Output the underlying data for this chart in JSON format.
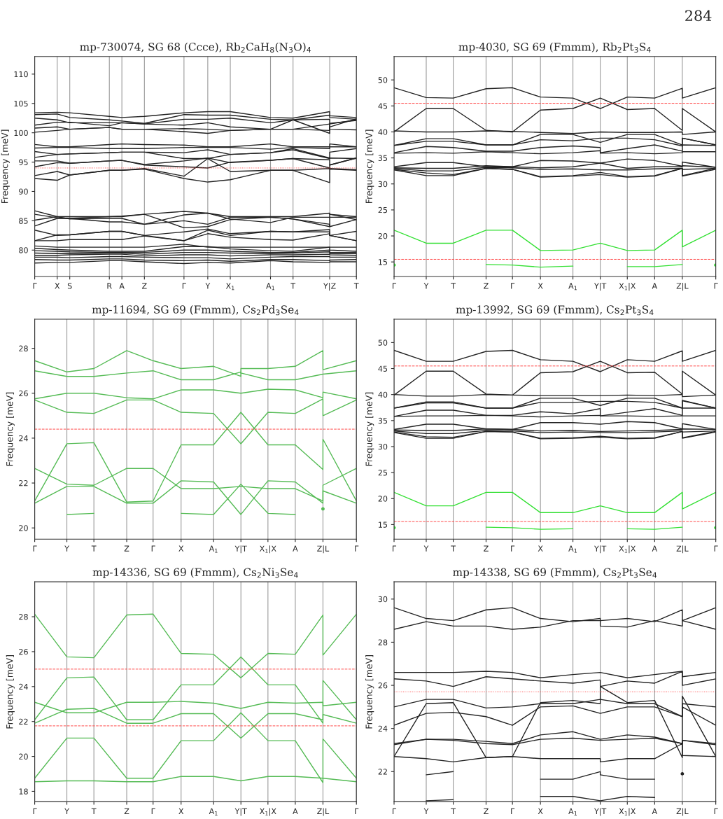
{
  "chart_data": [
    {
      "type": "line",
      "title": "mp-730074, SG 68 (Ccce), Rb$_{2}$CaH$_{8}$(N$_{3}$O)$_{4}$",
      "ylabel": "Frequency [meV]",
      "annotations": [
        "284"
      ],
      "x": [
        0,
        0.07,
        0.109,
        0.232,
        0.271,
        0.341,
        0.464,
        0.538,
        0.608,
        0.733,
        0.803,
        0.917,
        0.917,
        1.0
      ],
      "xlim": [
        0,
        1.0
      ],
      "xticks": [
        {
          "value": 0,
          "label": "Γ"
        },
        {
          "value": 0.07,
          "label": "X"
        },
        {
          "value": 0.109,
          "label": "S"
        },
        {
          "value": 0.232,
          "label": "R"
        },
        {
          "value": 0.271,
          "label": "A"
        },
        {
          "value": 0.341,
          "label": "Z"
        },
        {
          "value": 0.464,
          "label": "Γ"
        },
        {
          "value": 0.538,
          "label": "Y"
        },
        {
          "value": 0.608,
          "label": "X$_{1}$"
        },
        {
          "value": 0.733,
          "label": "A$_{1}$"
        },
        {
          "value": 0.803,
          "label": "T"
        },
        {
          "value": 0.917,
          "label": "Y|Z"
        },
        {
          "value": 1.0,
          "label": "T"
        }
      ],
      "ylim": [
        75.5,
        113
      ],
      "yticks": [
        80,
        85,
        90,
        95,
        100,
        105,
        110
      ],
      "grid": "x",
      "ref_lines": [
        {
          "axis": "y",
          "value": 94.0,
          "color": "#ff4444",
          "line_style": "dotted"
        }
      ],
      "series": [
        {
          "color": "#222222",
          "values": [
            103.4,
            103.5,
            103.4,
            102.8,
            102.6,
            102.8,
            103.4,
            103.6,
            103.6,
            102.6,
            102.5,
            103.6,
            102.9,
            102.6
          ]
        },
        {
          "color": "#222222",
          "values": [
            103.1,
            103.2,
            102.6,
            102.2,
            102.0,
            101.6,
            103.1,
            103.0,
            103.0,
            102.3,
            102.2,
            103.0,
            102.6,
            102.3
          ]
        },
        {
          "color": "#222222",
          "values": [
            102.5,
            102.2,
            101.7,
            101.7,
            101.7,
            101.5,
            102.3,
            102.3,
            102.5,
            101.7,
            102.2,
            102.3,
            101.5,
            102.2
          ]
        },
        {
          "color": "#222222",
          "values": [
            101.3,
            101.8,
            101.8,
            101.2,
            101.7,
            101.5,
            101.3,
            101.7,
            101.0,
            100.6,
            100.6,
            101.5,
            100.6,
            100.5
          ]
        },
        {
          "color": "#222222",
          "values": [
            100.8,
            101.0,
            100.6,
            100.9,
            100.6,
            100.6,
            100.7,
            100.6,
            100.4,
            100.6,
            100.6,
            100.4,
            101.6,
            102.1
          ]
        },
        {
          "color": "#222222",
          "values": [
            100.1,
            100.4,
            100.6,
            100.9,
            100.6,
            100.6,
            100.2,
            99.9,
            100.4,
            100.6,
            102.2,
            99.9,
            101.0,
            102.4
          ]
        },
        {
          "color": "#222222",
          "values": [
            98.0,
            97.6,
            97.6,
            98.0,
            98.1,
            98.0,
            97.9,
            97.6,
            97.6,
            98.1,
            97.6,
            97.6,
            98.1,
            97.6
          ]
        },
        {
          "color": "#222222",
          "values": [
            97.4,
            97.5,
            97.5,
            97.3,
            97.3,
            97.3,
            97.5,
            97.5,
            97.5,
            97.2,
            97.5,
            97.3,
            97.6,
            97.6
          ]
        },
        {
          "color": "#222222",
          "values": [
            96.8,
            96.3,
            96.4,
            96.6,
            96.7,
            96.7,
            96.6,
            97.1,
            96.3,
            96.6,
            97.3,
            95.7,
            96.7,
            97.3
          ]
        },
        {
          "color": "#222222",
          "values": [
            95.8,
            96.3,
            96.4,
            96.6,
            96.7,
            96.7,
            95.6,
            95.6,
            96.3,
            96.6,
            97.1,
            95.6,
            95.7,
            95.6
          ]
        },
        {
          "color": "#222222",
          "values": [
            95.2,
            95.2,
            94.8,
            95.2,
            95.3,
            94.6,
            95.2,
            95.7,
            94.9,
            95.3,
            95.6,
            95.4,
            94.5,
            95.7
          ]
        },
        {
          "color": "#222222",
          "values": [
            94.2,
            94.9,
            94.8,
            95.2,
            95.3,
            94.5,
            94.2,
            94.0,
            95.0,
            95.3,
            95.6,
            94.0,
            94.5,
            95.7
          ]
        },
        {
          "color": "#222222",
          "values": [
            92.7,
            93.4,
            92.8,
            93.6,
            93.6,
            93.9,
            92.6,
            95.6,
            93.4,
            93.6,
            93.6,
            93.9,
            93.9,
            93.7
          ]
        },
        {
          "color": "#222222",
          "values": [
            92.2,
            91.9,
            92.8,
            93.6,
            93.6,
            93.8,
            92.2,
            91.6,
            92.0,
            93.6,
            93.6,
            91.5,
            93.8,
            93.6
          ]
        },
        {
          "color": "#222222",
          "values": [
            86.7,
            85.7,
            85.7,
            85.7,
            85.8,
            86.1,
            86.6,
            86.3,
            85.7,
            85.7,
            85.7,
            86.3,
            86.1,
            85.7
          ]
        },
        {
          "color": "#222222",
          "values": [
            86.1,
            85.5,
            85.4,
            84.8,
            84.8,
            84.4,
            86.0,
            86.3,
            85.3,
            84.7,
            85.6,
            85.6,
            86.1,
            85.2
          ]
        },
        {
          "color": "#222222",
          "values": [
            85.1,
            85.7,
            85.3,
            85.4,
            85.4,
            84.4,
            85.0,
            84.4,
            85.6,
            85.6,
            85.3,
            84.4,
            84.0,
            85.2
          ]
        },
        {
          "color": "#222222",
          "values": [
            84.1,
            85.4,
            85.4,
            85.7,
            85.7,
            86.1,
            83.8,
            84.0,
            85.2,
            85.6,
            85.3,
            84.0,
            85.6,
            85.6
          ]
        },
        {
          "color": "#222222",
          "values": [
            83.4,
            82.5,
            82.6,
            83.2,
            83.2,
            82.5,
            83.1,
            83.6,
            82.8,
            83.2,
            83.1,
            83.5,
            82.5,
            83.2
          ]
        },
        {
          "color": "#222222",
          "values": [
            81.6,
            82.6,
            82.6,
            83.2,
            83.2,
            82.5,
            81.6,
            83.4,
            82.5,
            83.2,
            83.1,
            83.1,
            82.5,
            81.6
          ]
        },
        {
          "color": "#222222",
          "values": [
            81.6,
            81.6,
            81.8,
            81.8,
            81.8,
            82.4,
            81.6,
            82.8,
            82.2,
            81.8,
            81.7,
            82.8,
            82.5,
            81.6
          ]
        },
        {
          "color": "#222222",
          "values": [
            80.7,
            80.5,
            80.5,
            80.5,
            80.5,
            80.5,
            81.0,
            80.5,
            80.5,
            80.5,
            80.5,
            80.5,
            80.5,
            80.5
          ]
        },
        {
          "color": "#222222",
          "values": [
            80.3,
            80.1,
            80.0,
            79.8,
            79.8,
            79.8,
            80.6,
            80.6,
            80.2,
            79.9,
            79.8,
            80.5,
            80.0,
            79.8
          ]
        },
        {
          "color": "#222222",
          "values": [
            79.9,
            79.8,
            79.7,
            79.6,
            79.6,
            79.6,
            80.0,
            80.0,
            79.8,
            79.6,
            79.6,
            80.0,
            79.6,
            79.6
          ]
        },
        {
          "color": "#222222",
          "values": [
            79.5,
            79.4,
            79.4,
            79.5,
            79.5,
            79.3,
            79.6,
            79.6,
            79.5,
            79.4,
            79.5,
            79.7,
            79.4,
            79.4
          ]
        },
        {
          "color": "#222222",
          "values": [
            79.1,
            79.1,
            79.2,
            79.3,
            79.3,
            79.0,
            79.2,
            79.2,
            79.0,
            79.2,
            79.2,
            79.3,
            79.2,
            79.1
          ]
        },
        {
          "color": "#222222",
          "values": [
            78.8,
            78.8,
            78.7,
            78.9,
            78.9,
            78.8,
            78.7,
            78.7,
            78.5,
            78.8,
            78.9,
            78.9,
            78.8,
            78.8
          ]
        },
        {
          "color": "#222222",
          "values": [
            78.4,
            78.3,
            78.3,
            78.5,
            78.5,
            78.3,
            78.2,
            78.3,
            78.1,
            78.4,
            78.4,
            78.2,
            78.3,
            78.4
          ]
        },
        {
          "color": "#222222",
          "values": [
            77.8,
            77.9,
            77.9,
            78.2,
            78.2,
            78.0,
            77.7,
            77.9,
            77.8,
            78.2,
            78.0,
            77.9,
            78.0,
            78.0
          ]
        }
      ]
    },
    {
      "type": "line",
      "title": "mp-4030, SG 69 (Fmmm), Rb$_{2}$Pt$_{3}$S$_{4}$",
      "ylabel": "Frequency [meV]",
      "x": [
        0,
        0.1,
        0.184,
        0.286,
        0.368,
        0.455,
        0.556,
        0.641,
        0.641,
        0.725,
        0.725,
        0.81,
        0.896,
        0.896,
        1.0
      ],
      "xlim": [
        0,
        1.0
      ],
      "xticks": [
        {
          "value": 0,
          "label": "Γ"
        },
        {
          "value": 0.1,
          "label": "Y"
        },
        {
          "value": 0.184,
          "label": "T"
        },
        {
          "value": 0.286,
          "label": "Z"
        },
        {
          "value": 0.368,
          "label": "Γ"
        },
        {
          "value": 0.455,
          "label": "X"
        },
        {
          "value": 0.556,
          "label": "A$_{1}$"
        },
        {
          "value": 0.641,
          "label": "Y|T"
        },
        {
          "value": 0.725,
          "label": "X$_{1}$|X"
        },
        {
          "value": 0.81,
          "label": "A"
        },
        {
          "value": 0.896,
          "label": "Z|L"
        },
        {
          "value": 1.0,
          "label": "Γ"
        }
      ],
      "ylim": [
        12.2,
        54.5
      ],
      "yticks": [
        15,
        20,
        25,
        30,
        35,
        40,
        45,
        50
      ],
      "grid": "x",
      "ref_lines": [
        {
          "axis": "y",
          "value": 45.5,
          "color": "#ff4444",
          "line_style": "dashed"
        },
        {
          "axis": "y",
          "value": 15.5,
          "color": "#ff4444",
          "line_style": "dashed"
        }
      ],
      "series": [
        {
          "color": "#222222",
          "values": [
            48.5,
            46.6,
            46.5,
            48.3,
            48.5,
            46.7,
            46.5,
            44.5,
            44.5,
            46.7,
            46.7,
            46.5,
            48.4,
            46.5,
            48.5
          ]
        },
        {
          "color": "#222222",
          "values": [
            40.0,
            44.5,
            44.5,
            40.3,
            40.0,
            44.2,
            44.5,
            46.5,
            46.5,
            44.3,
            44.3,
            44.5,
            40.3,
            44.5,
            40.0
          ]
        },
        {
          "color": "#222222",
          "values": [
            40.2,
            40.0,
            40.0,
            40.2,
            40.1,
            39.9,
            39.7,
            40.0,
            40.0,
            39.9,
            39.9,
            39.9,
            40.0,
            39.5,
            40.0
          ]
        },
        {
          "color": "#222222",
          "values": [
            37.4,
            38.7,
            38.7,
            37.5,
            37.5,
            39.5,
            39.5,
            38.0,
            38.0,
            39.5,
            39.5,
            39.5,
            37.5,
            38.8,
            37.5
          ]
        },
        {
          "color": "#222222",
          "values": [
            37.4,
            38.2,
            38.2,
            37.5,
            37.5,
            38.5,
            38.3,
            38.8,
            38.8,
            38.8,
            38.8,
            38.5,
            37.3,
            38.8,
            37.5
          ]
        },
        {
          "color": "#222222",
          "values": [
            36.0,
            37.2,
            37.0,
            36.3,
            36.3,
            37.0,
            37.3,
            37.0,
            36.0,
            36.8,
            36.8,
            37.5,
            36.3,
            37.5,
            37.4
          ]
        },
        {
          "color": "#222222",
          "values": [
            35.9,
            36.0,
            35.9,
            36.2,
            36.0,
            35.8,
            36.0,
            36.4,
            35.9,
            36.0,
            36.0,
            35.8,
            36.0,
            36.2,
            36.2
          ]
        },
        {
          "color": "#222222",
          "values": [
            33.3,
            34.1,
            34.1,
            33.3,
            33.3,
            34.5,
            34.4,
            34.0,
            34.0,
            34.8,
            34.8,
            34.5,
            33.4,
            34.2,
            33.2
          ]
        },
        {
          "color": "#222222",
          "values": [
            33.1,
            33.0,
            33.0,
            33.5,
            33.3,
            33.1,
            33.3,
            34.0,
            34.0,
            33.0,
            33.0,
            33.3,
            33.3,
            33.5,
            33.2
          ]
        },
        {
          "color": "#222222",
          "values": [
            33.0,
            32.5,
            32.5,
            33.2,
            33.1,
            32.8,
            32.9,
            32.7,
            32.7,
            32.7,
            32.7,
            32.9,
            33.0,
            32.8,
            33.0
          ]
        },
        {
          "color": "#222222",
          "values": [
            32.8,
            32.1,
            31.8,
            33.0,
            32.8,
            31.4,
            31.6,
            32.2,
            32.2,
            31.4,
            31.4,
            31.6,
            33.0,
            31.6,
            33.0
          ]
        },
        {
          "color": "#222222",
          "values": [
            32.7,
            31.6,
            31.6,
            33.0,
            32.8,
            31.3,
            31.5,
            31.8,
            31.8,
            31.3,
            31.3,
            31.5,
            33.0,
            31.5,
            32.8
          ]
        },
        {
          "color": "#33e033",
          "values": [
            21.1,
            18.6,
            18.6,
            21.1,
            21.1,
            17.2,
            17.3,
            18.6,
            18.6,
            17.2,
            17.2,
            17.3,
            21.1,
            17.9,
            21.1
          ]
        },
        {
          "color": "#33e033",
          "values": [
            14.4,
            null,
            null,
            14.5,
            14.4,
            14.0,
            14.2,
            null,
            null,
            14.1,
            14.1,
            14.1,
            14.5,
            null,
            14.4
          ]
        }
      ]
    },
    {
      "type": "line",
      "title": "mp-11694, SG 69 (Fmmm), Cs$_{2}$Pd$_{3}$Se$_{4}$",
      "ylabel": "Frequency [meV]",
      "x": [
        0,
        0.1,
        0.184,
        0.286,
        0.368,
        0.455,
        0.556,
        0.641,
        0.641,
        0.725,
        0.725,
        0.81,
        0.896,
        0.896,
        1.0
      ],
      "xlim": [
        0,
        1.0
      ],
      "xticks": [
        {
          "value": 0,
          "label": "Γ"
        },
        {
          "value": 0.1,
          "label": "Y"
        },
        {
          "value": 0.184,
          "label": "T"
        },
        {
          "value": 0.286,
          "label": "Z"
        },
        {
          "value": 0.368,
          "label": "Γ"
        },
        {
          "value": 0.455,
          "label": "X"
        },
        {
          "value": 0.556,
          "label": "A$_{1}$"
        },
        {
          "value": 0.641,
          "label": "Y|T"
        },
        {
          "value": 0.725,
          "label": "X$_{1}$|X"
        },
        {
          "value": 0.81,
          "label": "A"
        },
        {
          "value": 0.896,
          "label": "Z|L"
        },
        {
          "value": 1.0,
          "label": "Γ"
        }
      ],
      "ylim": [
        19.5,
        29.3
      ],
      "yticks": [
        20,
        22,
        24,
        26,
        28
      ],
      "grid": "x",
      "ref_lines": [
        {
          "axis": "y",
          "value": 24.4,
          "color": "#ff4444",
          "line_style": "dashed"
        }
      ],
      "series": [
        {
          "color": "#55bb55",
          "values": [
            27.45,
            26.95,
            27.1,
            27.9,
            27.45,
            27.1,
            27.2,
            26.75,
            27.1,
            27.1,
            27.1,
            27.2,
            27.9,
            27.05,
            27.45
          ]
        },
        {
          "color": "#55bb55",
          "values": [
            27.0,
            26.75,
            26.75,
            26.9,
            27.0,
            26.6,
            26.6,
            26.95,
            26.9,
            26.6,
            26.6,
            26.6,
            26.85,
            26.85,
            27.0
          ]
        },
        {
          "color": "#55bb55",
          "values": [
            25.75,
            26.0,
            26.0,
            25.8,
            25.75,
            26.15,
            26.15,
            26.0,
            26.0,
            26.18,
            26.18,
            26.15,
            25.8,
            26.05,
            25.75
          ]
        },
        {
          "color": "#55bb55",
          "values": [
            25.7,
            25.15,
            25.1,
            25.7,
            25.7,
            25.15,
            25.1,
            23.75,
            23.75,
            25.15,
            25.15,
            25.1,
            25.75,
            25.0,
            25.7
          ]
        },
        {
          "color": "#55bb55",
          "values": [
            21.2,
            23.75,
            23.8,
            21.15,
            21.2,
            23.7,
            23.7,
            25.15,
            25.15,
            23.7,
            23.7,
            23.7,
            22.6,
            23.95,
            21.2
          ]
        },
        {
          "color": "#55bb55",
          "values": [
            22.65,
            21.95,
            21.9,
            22.65,
            22.65,
            21.75,
            21.75,
            21.85,
            21.85,
            21.75,
            21.75,
            21.75,
            21.2,
            21.9,
            22.65
          ]
        },
        {
          "color": "#55bb55",
          "values": [
            21.1,
            21.85,
            21.85,
            21.1,
            21.1,
            22.1,
            22.05,
            20.6,
            20.6,
            22.1,
            22.1,
            22.05,
            21.1,
            21.65,
            21.1
          ]
        },
        {
          "color": "#55bb55",
          "values": [
            null,
            20.6,
            20.65,
            null,
            null,
            20.65,
            20.6,
            21.95,
            21.95,
            20.65,
            20.65,
            20.6,
            null,
            20.85,
            null
          ]
        }
      ]
    },
    {
      "type": "line",
      "title": "mp-13992, SG 69 (Fmmm), Cs$_{2}$Pt$_{3}$S$_{4}$",
      "ylabel": "Frequency [meV]",
      "x": [
        0,
        0.1,
        0.184,
        0.286,
        0.368,
        0.455,
        0.556,
        0.641,
        0.641,
        0.725,
        0.725,
        0.81,
        0.896,
        0.896,
        1.0
      ],
      "xlim": [
        0,
        1.0
      ],
      "xticks": [
        {
          "value": 0,
          "label": "Γ"
        },
        {
          "value": 0.1,
          "label": "Y"
        },
        {
          "value": 0.184,
          "label": "T"
        },
        {
          "value": 0.286,
          "label": "Z"
        },
        {
          "value": 0.368,
          "label": "Γ"
        },
        {
          "value": 0.455,
          "label": "X"
        },
        {
          "value": 0.556,
          "label": "A$_{1}$"
        },
        {
          "value": 0.641,
          "label": "Y|T"
        },
        {
          "value": 0.725,
          "label": "X$_{1}$|X"
        },
        {
          "value": 0.81,
          "label": "A"
        },
        {
          "value": 0.896,
          "label": "Z|L"
        },
        {
          "value": 1.0,
          "label": "Γ"
        }
      ],
      "ylim": [
        12.2,
        54.5
      ],
      "yticks": [
        15,
        20,
        25,
        30,
        35,
        40,
        45,
        50
      ],
      "grid": "x",
      "ref_lines": [
        {
          "axis": "y",
          "value": 45.5,
          "color": "#ff4444",
          "line_style": "dashed"
        },
        {
          "axis": "y",
          "value": 15.6,
          "color": "#ff4444",
          "line_style": "dashed"
        }
      ],
      "series": [
        {
          "color": "#222222",
          "values": [
            48.5,
            46.4,
            46.4,
            48.3,
            48.5,
            46.7,
            46.4,
            44.4,
            44.4,
            46.7,
            46.7,
            46.4,
            48.4,
            46.4,
            48.5
          ]
        },
        {
          "color": "#222222",
          "values": [
            39.9,
            44.5,
            44.5,
            40.1,
            39.9,
            44.2,
            44.4,
            46.4,
            46.4,
            44.2,
            44.2,
            44.3,
            40.1,
            44.5,
            39.9
          ]
        },
        {
          "color": "#222222",
          "values": [
            40.0,
            39.7,
            39.7,
            40.0,
            39.9,
            39.8,
            39.8,
            39.8,
            39.8,
            39.9,
            39.9,
            39.8,
            40.0,
            39.6,
            39.9
          ]
        },
        {
          "color": "#222222",
          "values": [
            37.4,
            38.6,
            38.6,
            37.4,
            37.4,
            39.3,
            39.3,
            37.9,
            37.9,
            39.3,
            39.3,
            39.3,
            37.4,
            38.9,
            37.4
          ]
        },
        {
          "color": "#222222",
          "values": [
            37.4,
            38.4,
            38.4,
            37.4,
            37.4,
            38.5,
            38.5,
            38.7,
            38.7,
            38.7,
            38.7,
            38.5,
            37.4,
            38.8,
            37.4
          ]
        },
        {
          "color": "#222222",
          "values": [
            35.8,
            37.0,
            37.0,
            36.0,
            36.0,
            36.7,
            36.3,
            37.3,
            35.9,
            36.6,
            36.6,
            37.3,
            36.0,
            37.4,
            37.4
          ]
        },
        {
          "color": "#222222",
          "values": [
            35.8,
            35.9,
            35.9,
            36.0,
            35.9,
            35.7,
            35.9,
            36.0,
            35.9,
            35.9,
            35.9,
            35.8,
            35.9,
            35.9,
            35.9
          ]
        },
        {
          "color": "#222222",
          "values": [
            33.3,
            34.3,
            34.3,
            33.4,
            33.3,
            34.6,
            34.6,
            34.3,
            34.3,
            34.8,
            34.8,
            34.6,
            33.4,
            34.4,
            33.3
          ]
        },
        {
          "color": "#222222",
          "values": [
            33.2,
            33.1,
            33.1,
            33.4,
            33.3,
            33.0,
            33.1,
            32.9,
            32.9,
            33.0,
            33.0,
            33.1,
            33.3,
            33.4,
            33.3
          ]
        },
        {
          "color": "#222222",
          "values": [
            33.0,
            32.5,
            32.5,
            33.1,
            33.0,
            32.7,
            32.8,
            32.7,
            32.7,
            32.7,
            32.7,
            32.8,
            33.0,
            32.8,
            33.0
          ]
        },
        {
          "color": "#222222",
          "values": [
            32.8,
            31.9,
            31.8,
            32.9,
            32.8,
            31.6,
            31.7,
            32.0,
            32.0,
            31.6,
            31.6,
            31.7,
            32.9,
            31.7,
            32.9
          ]
        },
        {
          "color": "#222222",
          "values": [
            32.7,
            31.6,
            31.6,
            32.9,
            32.8,
            31.5,
            31.6,
            31.8,
            31.8,
            31.5,
            31.5,
            31.6,
            32.9,
            31.6,
            32.8
          ]
        },
        {
          "color": "#33e033",
          "values": [
            21.2,
            18.6,
            18.6,
            21.2,
            21.2,
            17.3,
            17.3,
            18.6,
            18.6,
            17.3,
            17.3,
            17.3,
            21.2,
            18.0,
            21.2
          ]
        },
        {
          "color": "#33e033",
          "values": [
            14.4,
            null,
            null,
            14.5,
            14.4,
            14.1,
            14.2,
            null,
            null,
            14.2,
            14.2,
            14.1,
            14.5,
            null,
            14.4
          ]
        }
      ]
    },
    {
      "type": "line",
      "title": "mp-14336, SG 69 (Fmmm), Cs$_{2}$Ni$_{3}$Se$_{4}$",
      "ylabel": "Frequency [meV]",
      "x": [
        0,
        0.1,
        0.184,
        0.286,
        0.368,
        0.455,
        0.556,
        0.641,
        0.641,
        0.725,
        0.725,
        0.81,
        0.896,
        0.896,
        1.0
      ],
      "xlim": [
        0,
        1.0
      ],
      "xticks": [
        {
          "value": 0,
          "label": "Γ"
        },
        {
          "value": 0.1,
          "label": "Y"
        },
        {
          "value": 0.184,
          "label": "T"
        },
        {
          "value": 0.286,
          "label": "Z"
        },
        {
          "value": 0.368,
          "label": "Γ"
        },
        {
          "value": 0.455,
          "label": "X"
        },
        {
          "value": 0.556,
          "label": "A$_{1}$"
        },
        {
          "value": 0.641,
          "label": "Y|T"
        },
        {
          "value": 0.725,
          "label": "X$_{1}$|X"
        },
        {
          "value": 0.81,
          "label": "A"
        },
        {
          "value": 0.896,
          "label": "Z|L"
        },
        {
          "value": 1.0,
          "label": "Γ"
        }
      ],
      "ylim": [
        17.4,
        30.0
      ],
      "yticks": [
        18,
        20,
        22,
        24,
        26,
        28
      ],
      "grid": "x",
      "ref_lines": [
        {
          "axis": "y",
          "value": 25.0,
          "color": "#ff4444",
          "line_style": "dashed"
        },
        {
          "axis": "y",
          "value": 21.75,
          "color": "#ff4444",
          "line_style": "dashed"
        }
      ],
      "series": [
        {
          "color": "#55bb55",
          "values": [
            28.15,
            25.7,
            25.65,
            28.1,
            28.15,
            25.9,
            25.85,
            24.5,
            24.5,
            25.9,
            25.9,
            25.85,
            28.1,
            25.8,
            28.15
          ]
        },
        {
          "color": "#55bb55",
          "values": [
            22.1,
            24.5,
            24.55,
            22.1,
            22.1,
            24.1,
            24.1,
            25.7,
            25.7,
            24.1,
            24.1,
            24.1,
            21.9,
            24.35,
            22.1
          ]
        },
        {
          "color": "#55bb55",
          "values": [
            23.1,
            22.5,
            22.5,
            23.1,
            23.1,
            23.15,
            23.05,
            22.75,
            22.75,
            23.1,
            23.1,
            23.05,
            23.1,
            22.9,
            23.1
          ]
        },
        {
          "color": "#55bb55",
          "values": [
            21.9,
            22.7,
            22.75,
            21.9,
            21.9,
            22.45,
            22.45,
            21.05,
            21.05,
            22.45,
            22.45,
            22.45,
            22.1,
            22.4,
            21.9
          ]
        },
        {
          "color": "#55bb55",
          "values": [
            18.75,
            21.05,
            21.05,
            18.75,
            18.75,
            20.9,
            20.9,
            22.5,
            22.5,
            20.9,
            20.9,
            20.9,
            18.5,
            21.0,
            18.75
          ]
        },
        {
          "color": "#55bb55",
          "values": [
            18.55,
            18.6,
            18.6,
            18.55,
            18.55,
            18.85,
            18.85,
            18.6,
            18.6,
            18.85,
            18.85,
            18.85,
            18.75,
            18.75,
            18.55
          ]
        }
      ]
    },
    {
      "type": "line",
      "title": "mp-14338, SG 69 (Fmmm), Cs$_{2}$Pt$_{3}$Se$_{4}$",
      "ylabel": "Frequency [meV]",
      "x": [
        0,
        0.1,
        0.184,
        0.286,
        0.368,
        0.455,
        0.556,
        0.641,
        0.641,
        0.725,
        0.725,
        0.81,
        0.896,
        0.896,
        1.0
      ],
      "xlim": [
        0,
        1.0
      ],
      "xticks": [
        {
          "value": 0,
          "label": "Γ"
        },
        {
          "value": 0.1,
          "label": "Y"
        },
        {
          "value": 0.184,
          "label": "T"
        },
        {
          "value": 0.286,
          "label": "Z"
        },
        {
          "value": 0.368,
          "label": "Γ"
        },
        {
          "value": 0.455,
          "label": "X"
        },
        {
          "value": 0.556,
          "label": "A$_{1}$"
        },
        {
          "value": 0.641,
          "label": "Y|T"
        },
        {
          "value": 0.725,
          "label": "X$_{1}$|X"
        },
        {
          "value": 0.81,
          "label": "A"
        },
        {
          "value": 0.896,
          "label": "Z|L"
        },
        {
          "value": 1.0,
          "label": "Γ"
        }
      ],
      "ylim": [
        20.6,
        30.8
      ],
      "yticks": [
        22,
        24,
        26,
        28,
        30
      ],
      "grid": "x",
      "ref_lines": [
        {
          "axis": "y",
          "value": 25.7,
          "color": "#ff4444",
          "line_style": "dotted"
        }
      ],
      "series": [
        {
          "color": "#222222",
          "values": [
            29.6,
            29.1,
            29.0,
            29.5,
            29.6,
            29.1,
            28.95,
            29.1,
            29.0,
            29.1,
            29.1,
            28.95,
            29.5,
            29.0,
            29.6
          ]
        },
        {
          "color": "#222222",
          "values": [
            28.6,
            28.95,
            28.75,
            28.75,
            28.6,
            28.7,
            29.0,
            29.0,
            28.75,
            28.7,
            28.7,
            29.0,
            28.75,
            29.0,
            28.6
          ]
        },
        {
          "color": "#222222",
          "values": [
            26.6,
            26.6,
            26.6,
            26.65,
            26.6,
            26.35,
            26.5,
            26.6,
            26.6,
            26.35,
            26.35,
            26.5,
            26.65,
            26.4,
            26.6
          ]
        },
        {
          "color": "#222222",
          "values": [
            26.3,
            26.2,
            25.95,
            26.4,
            26.3,
            26.2,
            26.1,
            26.25,
            25.95,
            26.2,
            26.2,
            26.1,
            26.65,
            26.0,
            26.3
          ]
        },
        {
          "color": "#222222",
          "values": [
            25.0,
            25.35,
            25.35,
            24.95,
            25.0,
            25.15,
            25.15,
            25.35,
            25.35,
            25.15,
            25.15,
            25.15,
            24.55,
            25.15,
            25.0
          ]
        },
        {
          "color": "#222222",
          "values": [
            24.15,
            24.7,
            24.75,
            24.55,
            24.15,
            25.0,
            25.05,
            24.7,
            24.7,
            25.0,
            25.0,
            25.0,
            24.55,
            25.0,
            24.15
          ]
        },
        {
          "color": "#222222",
          "values": [
            22.7,
            25.15,
            25.2,
            22.65,
            22.7,
            25.2,
            25.3,
            25.15,
            25.95,
            25.2,
            25.2,
            25.3,
            22.65,
            25.5,
            22.7
          ]
        },
        {
          "color": "#222222",
          "values": [
            23.3,
            23.5,
            23.5,
            23.4,
            23.3,
            23.7,
            23.85,
            23.5,
            23.5,
            23.7,
            23.7,
            23.6,
            23.3,
            23.45,
            23.3
          ]
        },
        {
          "color": "#222222",
          "values": [
            23.25,
            23.5,
            23.45,
            23.3,
            23.25,
            23.5,
            23.55,
            23.45,
            23.45,
            23.5,
            23.5,
            23.55,
            23.3,
            23.45,
            23.25
          ]
        },
        {
          "color": "#222222",
          "values": [
            22.7,
            22.6,
            22.45,
            22.65,
            22.7,
            22.6,
            22.6,
            22.6,
            22.45,
            22.6,
            22.6,
            22.6,
            23.3,
            22.75,
            22.7
          ]
        },
        {
          "color": "#222222",
          "values": [
            null,
            21.85,
            22.0,
            null,
            null,
            21.65,
            21.65,
            22.0,
            21.85,
            21.65,
            21.65,
            21.65,
            null,
            21.9,
            null
          ]
        },
        {
          "color": "#222222",
          "values": [
            null,
            20.65,
            20.7,
            null,
            null,
            20.85,
            20.85,
            20.65,
            20.65,
            20.85,
            20.85,
            20.8,
            null,
            null,
            null
          ]
        }
      ]
    }
  ]
}
